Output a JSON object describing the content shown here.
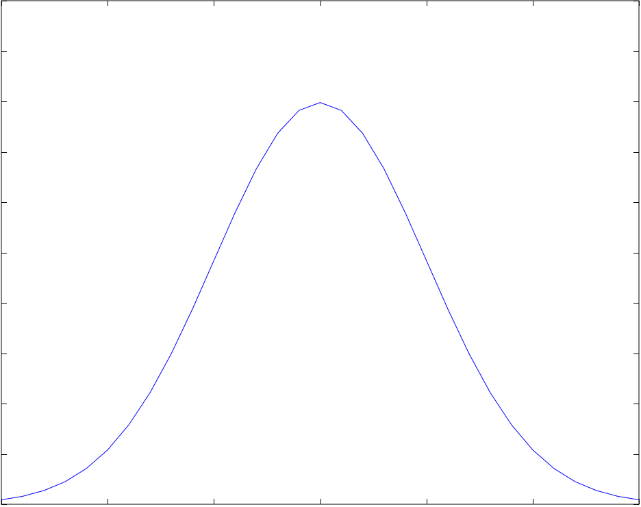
{
  "chart_data": {
    "type": "line",
    "title": "",
    "xlabel": "",
    "ylabel": "",
    "xlim": [
      -3,
      3
    ],
    "ylim": [
      0,
      0.5
    ],
    "x_ticks": [
      -3,
      -2,
      -1,
      0,
      1,
      2,
      3
    ],
    "y_ticks": [
      0,
      0.05,
      0.1,
      0.15,
      0.2,
      0.25,
      0.3,
      0.35,
      0.4,
      0.45,
      0.5
    ],
    "tick_labels_shown": false,
    "grid": false,
    "legend": "none",
    "series": [
      {
        "color": "#0000ff",
        "x": [
          -3.0,
          -2.8,
          -2.6,
          -2.4,
          -2.2,
          -2.0,
          -1.8,
          -1.6,
          -1.4,
          -1.2,
          -1.0,
          -0.8,
          -0.6,
          -0.4,
          -0.2,
          0.0,
          0.2,
          0.4,
          0.6,
          0.8,
          1.0,
          1.2,
          1.4,
          1.6,
          1.8,
          2.0,
          2.2,
          2.4,
          2.6,
          2.8,
          3.0
        ],
        "y": [
          0.0044,
          0.0079,
          0.0136,
          0.0224,
          0.0355,
          0.054,
          0.079,
          0.1109,
          0.1497,
          0.1942,
          0.242,
          0.2897,
          0.3332,
          0.3683,
          0.391,
          0.3989,
          0.391,
          0.3683,
          0.3332,
          0.2897,
          0.242,
          0.1942,
          0.1497,
          0.1109,
          0.079,
          0.054,
          0.0355,
          0.0224,
          0.0136,
          0.0079,
          0.0044
        ]
      }
    ]
  }
}
